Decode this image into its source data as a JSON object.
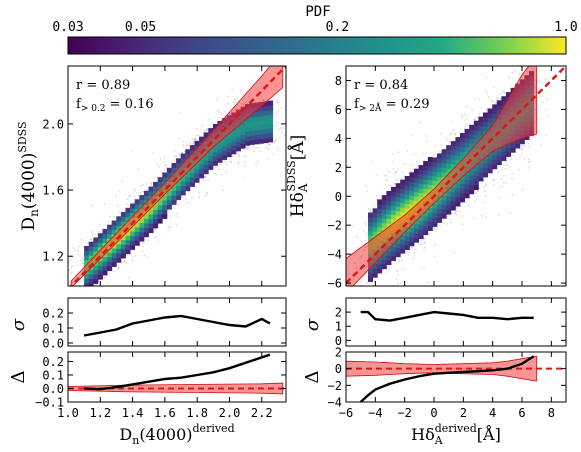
{
  "colorbar": {
    "label": "PDF",
    "ticks": [
      "0.03",
      "0.05",
      "0.2",
      "1.0"
    ],
    "tick_values": [
      0.03,
      0.05,
      0.2,
      1.0
    ],
    "range": [
      0.03,
      1.0
    ],
    "scale": "log",
    "colormap": "viridis"
  },
  "chart_data": [
    {
      "type": "heatmap",
      "panel": "left-main",
      "ylabel_main": "D",
      "ylabel_sub": "n",
      "ylabel_tail": "(4000)",
      "ylabel_sup": "SDSS",
      "stats": {
        "r_label": "r = 0.89",
        "f_label": "f",
        "f_sub": "> 0.2",
        "f_value": " = 0.16"
      },
      "xlim": [
        1.0,
        2.35
      ],
      "ylim": [
        1.02,
        2.35
      ],
      "yticks": [
        1.2,
        1.6,
        2.0
      ],
      "ytick_labels": [
        "1.2",
        "1.6",
        "2.0"
      ],
      "one_to_one_line": true,
      "ridge": {
        "x": [
          1.1,
          1.3,
          1.5,
          1.7,
          1.9,
          2.1,
          2.25
        ],
        "y": [
          1.12,
          1.3,
          1.48,
          1.68,
          1.86,
          1.98,
          2.0
        ]
      },
      "band": {
        "x": [
          1.02,
          1.3,
          1.6,
          1.9,
          2.2,
          2.33
        ],
        "center": [
          1.03,
          1.31,
          1.61,
          1.91,
          2.2,
          2.33
        ],
        "halfwidth": [
          0.02,
          0.03,
          0.035,
          0.05,
          0.09,
          0.11
        ]
      }
    },
    {
      "type": "line",
      "panel": "left-sigma",
      "ylabel": "σ",
      "ylim": [
        -0.02,
        0.3
      ],
      "yticks": [
        0.0,
        0.1,
        0.2
      ],
      "ytick_labels": [
        "0.0",
        "0.1",
        "0.2"
      ],
      "x": [
        1.1,
        1.2,
        1.3,
        1.4,
        1.5,
        1.6,
        1.7,
        1.8,
        1.9,
        2.0,
        2.1,
        2.2,
        2.25
      ],
      "values": [
        0.05,
        0.07,
        0.09,
        0.13,
        0.15,
        0.17,
        0.18,
        0.16,
        0.14,
        0.12,
        0.11,
        0.16,
        0.13
      ]
    },
    {
      "type": "line",
      "panel": "left-delta",
      "ylabel": "Δ",
      "xlabel_main": "D",
      "xlabel_sub": "n",
      "xlabel_tail": "(4000)",
      "xlabel_sup": "derived",
      "xlim": [
        1.0,
        2.35
      ],
      "xticks": [
        1.0,
        1.2,
        1.4,
        1.6,
        1.8,
        2.0,
        2.2
      ],
      "xtick_labels": [
        "1.0",
        "1.2",
        "1.4",
        "1.6",
        "1.8",
        "2.0",
        "2.2"
      ],
      "ylim": [
        -0.1,
        0.27
      ],
      "yticks": [
        -0.1,
        0.0,
        0.1,
        0.2
      ],
      "ytick_labels": [
        "−0.1",
        "0.0",
        "0.1",
        "0.2"
      ],
      "x": [
        1.1,
        1.2,
        1.3,
        1.4,
        1.5,
        1.6,
        1.7,
        1.8,
        1.9,
        2.0,
        2.1,
        2.2,
        2.25
      ],
      "values": [
        0.0,
        -0.005,
        0.01,
        0.03,
        0.05,
        0.07,
        0.08,
        0.1,
        0.12,
        0.15,
        0.19,
        0.23,
        0.25
      ],
      "band_x": [
        1.0,
        1.4,
        1.8,
        2.2,
        2.33
      ],
      "band_halfwidth": [
        0.015,
        0.025,
        0.03,
        0.035,
        0.04
      ]
    },
    {
      "type": "heatmap",
      "panel": "right-main",
      "ylabel_main": "Hδ",
      "ylabel_sub": "A",
      "ylabel_sup": "SDSS",
      "ylabel_tail": "[Å]",
      "stats": {
        "r_label": "r = 0.84",
        "f_label": "f",
        "f_sub": "> 2Å",
        "f_value": " = 0.29"
      },
      "xlim": [
        -6,
        9
      ],
      "ylim": [
        -6.2,
        9.0
      ],
      "yticks": [
        -6,
        -4,
        -2,
        0,
        2,
        4,
        6,
        8
      ],
      "ytick_labels": [
        "−6",
        "−4",
        "−2",
        "0",
        "2",
        "4",
        "6",
        "8"
      ],
      "one_to_one_line": true,
      "ridge": {
        "x": [
          -4.5,
          -3,
          -1,
          1,
          3,
          5,
          6.5
        ],
        "y": [
          -3.6,
          -2.2,
          -0.6,
          1.2,
          3.0,
          4.8,
          6.2
        ]
      },
      "band": {
        "x": [
          -6,
          -4,
          -2,
          0,
          2,
          4,
          5,
          6,
          7
        ],
        "center": [
          -5.5,
          -3.7,
          -1.9,
          0.0,
          2.0,
          4.0,
          5.1,
          6.2,
          7.0
        ],
        "halfwidth": [
          1.2,
          0.9,
          0.6,
          0.5,
          0.6,
          0.9,
          1.5,
          2.2,
          2.7
        ]
      }
    },
    {
      "type": "line",
      "panel": "right-sigma",
      "ylabel": "σ",
      "ylim": [
        -0.4,
        3.0
      ],
      "yticks": [
        0,
        1,
        2
      ],
      "ytick_labels": [
        "0",
        "1",
        "2"
      ],
      "x": [
        -5,
        -4.5,
        -4,
        -3,
        -2,
        -1,
        0,
        1,
        2,
        3,
        4,
        5,
        6,
        6.8
      ],
      "values": [
        2.0,
        2.0,
        1.5,
        1.4,
        1.6,
        1.8,
        2.0,
        1.9,
        1.8,
        1.6,
        1.6,
        1.5,
        1.6,
        1.6
      ]
    },
    {
      "type": "line",
      "panel": "right-delta",
      "ylabel": "Δ",
      "xlabel_main": "Hδ",
      "xlabel_sub": "A",
      "xlabel_sup": "derived",
      "xlabel_tail": "[Å]",
      "xlim": [
        -6,
        9
      ],
      "xticks": [
        -6,
        -4,
        -2,
        0,
        2,
        4,
        6,
        8
      ],
      "xtick_labels": [
        "−6",
        "−4",
        "−2",
        "0",
        "2",
        "4",
        "6",
        "8"
      ],
      "ylim": [
        -4.0,
        2.0
      ],
      "yticks": [
        -4,
        -2,
        0,
        2
      ],
      "ytick_labels": [
        "−4",
        "−2",
        "0",
        "2"
      ],
      "x": [
        -5,
        -4.5,
        -4,
        -3,
        -2,
        -1,
        0,
        1,
        2,
        3,
        4,
        5,
        6,
        6.8
      ],
      "values": [
        -4.0,
        -3.2,
        -2.5,
        -1.8,
        -1.3,
        -0.9,
        -0.6,
        -0.5,
        -0.4,
        -0.3,
        -0.2,
        0.0,
        0.6,
        1.5
      ],
      "band_x": [
        -6,
        -4,
        -2,
        0,
        2,
        4,
        5,
        6,
        7
      ],
      "band_halfwidth": [
        0.9,
        0.8,
        0.6,
        0.5,
        0.6,
        0.7,
        0.9,
        1.2,
        1.5
      ]
    }
  ]
}
